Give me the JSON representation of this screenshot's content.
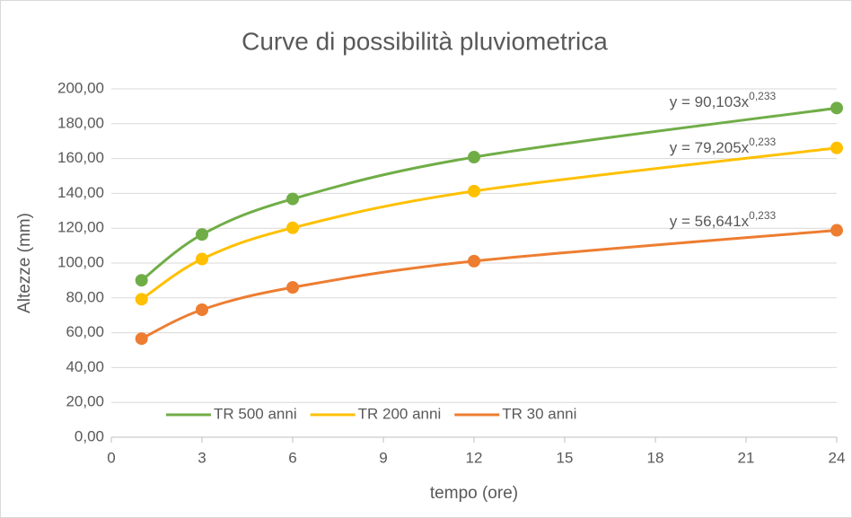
{
  "chart_data": {
    "type": "line",
    "title": "Curve di possibilità pluviometrica",
    "x_label": "tempo (ore)",
    "y_label": "Altezze (mm)",
    "x": [
      1,
      3,
      6,
      12,
      24
    ],
    "series": [
      {
        "name": "TR 500 anni",
        "color": "#70ad47",
        "values": [
          90.1,
          116.4,
          136.8,
          160.8,
          189.0
        ],
        "trendline_label": {
          "base": "y = 90,103x",
          "exponent": "0,233"
        }
      },
      {
        "name": "TR 200 anni",
        "color": "#ffc000",
        "values": [
          79.2,
          102.3,
          120.2,
          141.3,
          166.1
        ],
        "trendline_label": {
          "base": "y = 79,205x",
          "exponent": "0,233"
        }
      },
      {
        "name": "TR 30 anni",
        "color": "#ed7d31",
        "values": [
          56.6,
          73.2,
          86.0,
          101.1,
          118.8
        ],
        "trendline_label": {
          "base": "y = 56,641x",
          "exponent": "0,233"
        }
      }
    ],
    "xlim": [
      0,
      24
    ],
    "xticks": [
      0,
      3,
      6,
      9,
      12,
      15,
      18,
      21,
      24
    ],
    "ylim": [
      0,
      200
    ],
    "yticks": [
      {
        "value": 0,
        "label": "0,00"
      },
      {
        "value": 20,
        "label": "20,00"
      },
      {
        "value": 40,
        "label": "40,00"
      },
      {
        "value": 60,
        "label": "60,00"
      },
      {
        "value": 80,
        "label": "80,00"
      },
      {
        "value": 100,
        "label": "100,00"
      },
      {
        "value": 120,
        "label": "120,00"
      },
      {
        "value": 140,
        "label": "140,00"
      },
      {
        "value": 160,
        "label": "160,00"
      },
      {
        "value": 180,
        "label": "180,00"
      },
      {
        "value": 200,
        "label": "200,00"
      }
    ],
    "grid": true,
    "legend": "bottom"
  }
}
